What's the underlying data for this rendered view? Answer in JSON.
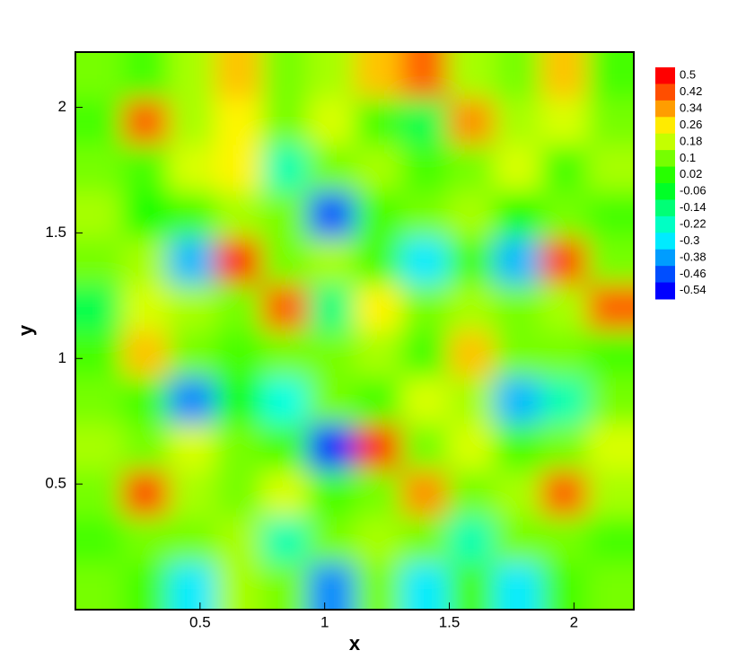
{
  "chart_data": {
    "type": "heatmap",
    "x_label": "x",
    "y_label": "y",
    "xlim": [
      0,
      2.24
    ],
    "ylim": [
      0,
      2.22
    ],
    "xticks": [
      0.5,
      1,
      1.5,
      2
    ],
    "yticks": [
      0.5,
      1,
      1.5,
      2
    ],
    "colormap": [
      "#0000ff",
      "#00ffff",
      "#00ff00",
      "#ffff00",
      "#ff0000"
    ],
    "levels": [
      0.5,
      0.42,
      0.34,
      0.26,
      0.18,
      0.1,
      0.02,
      -0.06,
      -0.14,
      -0.22,
      -0.3,
      -0.38,
      -0.46,
      -0.54
    ],
    "z": [
      [
        0.1,
        0.05,
        0.15,
        0.3,
        0.1,
        0.15,
        0.3,
        0.4,
        0.15,
        0.1,
        0.3,
        0.05
      ],
      [
        0.05,
        0.4,
        0.15,
        0.25,
        0.1,
        0.2,
        0.05,
        -0.1,
        0.35,
        0.15,
        0.2,
        0.1
      ],
      [
        0.1,
        0.05,
        0.2,
        0.25,
        -0.2,
        0.1,
        0.15,
        0.05,
        0.1,
        0.2,
        0.05,
        0.15
      ],
      [
        0.15,
        0,
        0.05,
        0.15,
        0.1,
        -0.45,
        0.05,
        0.1,
        0.15,
        0,
        0.1,
        0.05
      ],
      [
        0.1,
        0.15,
        -0.35,
        0.45,
        0.1,
        0.15,
        0.05,
        -0.3,
        0.05,
        -0.35,
        0.42,
        0.1
      ],
      [
        -0.1,
        0.2,
        0.15,
        0.1,
        0.4,
        -0.15,
        0.25,
        0.1,
        0.15,
        0.1,
        0.15,
        0.4
      ],
      [
        0.05,
        0.3,
        0.1,
        0.05,
        0.1,
        0.1,
        0.15,
        0.05,
        0.3,
        0.1,
        0.1,
        0.05
      ],
      [
        0.1,
        0.05,
        -0.4,
        0,
        -0.25,
        0.1,
        0.05,
        0.2,
        0.15,
        -0.35,
        -0.2,
        0.1
      ],
      [
        0.15,
        0.1,
        0.2,
        0.1,
        0.05,
        -0.5,
        0.45,
        0.1,
        0.2,
        0.05,
        0.1,
        0.2
      ],
      [
        0.1,
        0.42,
        0.15,
        0.1,
        0.2,
        0.05,
        0.1,
        0.35,
        0.1,
        0.15,
        0.4,
        0.15
      ],
      [
        0.05,
        0.1,
        0.1,
        0.15,
        -0.2,
        0.1,
        0.15,
        0.1,
        -0.2,
        0.1,
        0.1,
        0.05
      ],
      [
        0.1,
        0.05,
        -0.3,
        0.15,
        0.1,
        -0.4,
        0.1,
        -0.3,
        0.05,
        -0.3,
        0.05,
        0.1
      ]
    ]
  }
}
